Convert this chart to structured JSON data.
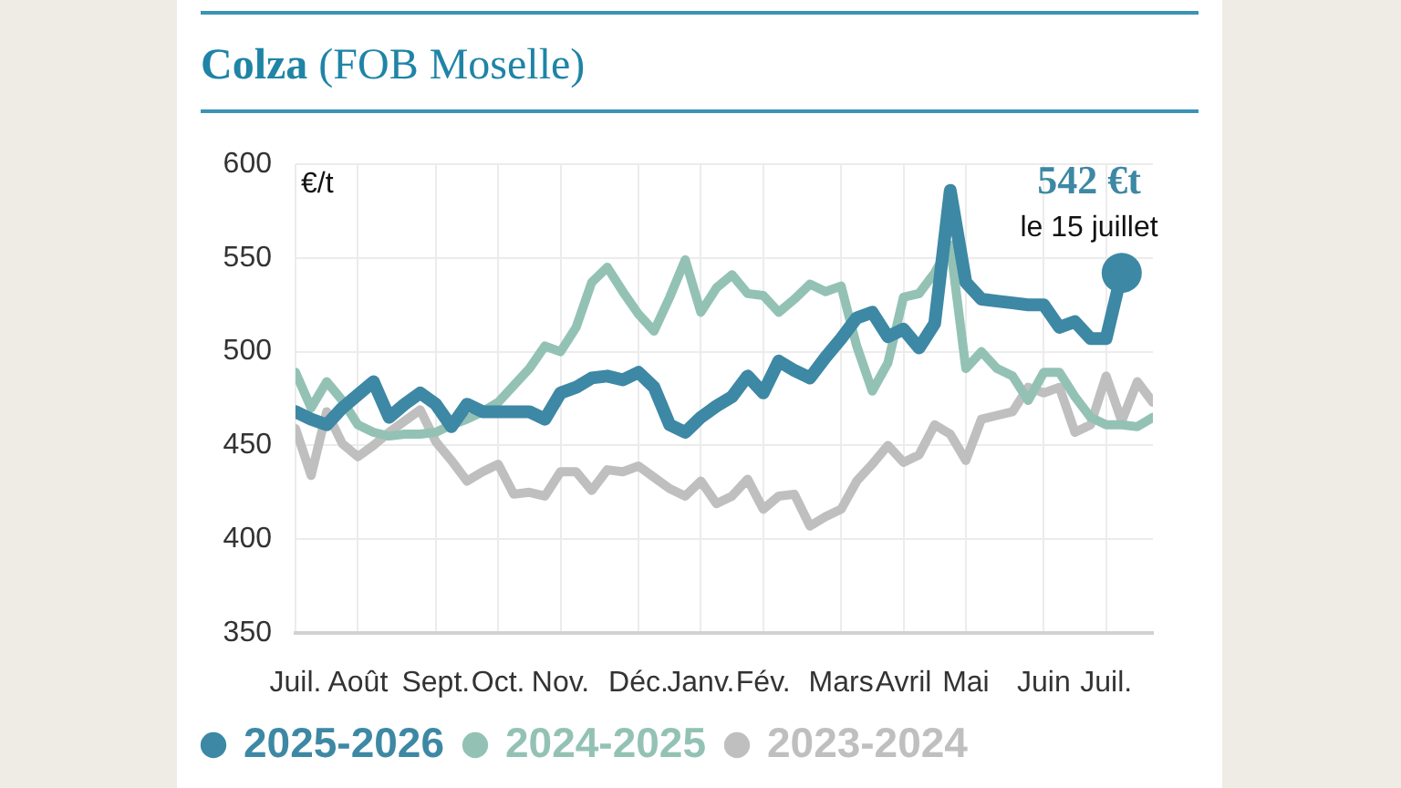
{
  "chart_data": {
    "type": "line",
    "title": "Colza (FOB Moselle)",
    "ylabel": "€/t",
    "categories": [
      "Juil.",
      null,
      null,
      null,
      "Août",
      null,
      null,
      null,
      null,
      "Sept.",
      null,
      null,
      null,
      "Oct.",
      null,
      null,
      null,
      "Nov.",
      null,
      null,
      null,
      null,
      "Déc.",
      null,
      null,
      null,
      "Janv.",
      null,
      null,
      null,
      "Fév.",
      null,
      null,
      null,
      null,
      "Mars",
      null,
      null,
      null,
      "Avril",
      null,
      null,
      null,
      "Mai",
      null,
      null,
      null,
      null,
      "Juin",
      null,
      null,
      null,
      "Juil.",
      null,
      null,
      null
    ],
    "ylim": [
      350,
      600
    ],
    "yticks": [
      350,
      400,
      450,
      500,
      550,
      600
    ],
    "grid": true,
    "legend": "bottom left",
    "annotations": [
      "542 €t",
      "le 15 juillet"
    ],
    "series": [
      {
        "name": "2025-2026",
        "color": "#3d88a4",
        "values": [
          468,
          464,
          461,
          470,
          477,
          484,
          465,
          472,
          478,
          472,
          460,
          472,
          468,
          468,
          468,
          468,
          464,
          478,
          481,
          486,
          487,
          485,
          489,
          481,
          461,
          457,
          465,
          471,
          476,
          487,
          478,
          495,
          490,
          486,
          497,
          507,
          518,
          521,
          508,
          512,
          502,
          515,
          586,
          537,
          528,
          527,
          526,
          525,
          525,
          513,
          516,
          507,
          507,
          542,
          null,
          null
        ]
      },
      {
        "name": "2024-2025",
        "color": "#93c2b5",
        "values": [
          489,
          470,
          484,
          474,
          461,
          457,
          455,
          456,
          456,
          457,
          461,
          464,
          468,
          473,
          482,
          491,
          503,
          500,
          513,
          537,
          545,
          532,
          520,
          511,
          529,
          549,
          521,
          534,
          541,
          531,
          530,
          521,
          528,
          536,
          532,
          535,
          503,
          479,
          494,
          529,
          531,
          542,
          557,
          491,
          500,
          491,
          487,
          474,
          489,
          489,
          476,
          465,
          461,
          461,
          460,
          465
        ]
      },
      {
        "name": "2023-2024",
        "color": "#bfbfbf",
        "values": [
          459,
          434,
          468,
          451,
          444,
          450,
          457,
          463,
          469,
          452,
          442,
          431,
          436,
          440,
          424,
          425,
          423,
          436,
          436,
          426,
          437,
          436,
          439,
          433,
          427,
          423,
          431,
          419,
          423,
          432,
          416,
          423,
          424,
          407,
          412,
          416,
          431,
          440,
          450,
          441,
          445,
          461,
          456,
          442,
          464,
          466,
          468,
          481,
          478,
          481,
          457,
          461,
          487,
          463,
          484,
          473
        ]
      },
      {
        "type": "scatter",
        "marker": "circle",
        "color": "#3d88a4",
        "values": [
          null,
          null,
          null,
          null,
          null,
          null,
          null,
          null,
          null,
          null,
          null,
          null,
          null,
          null,
          null,
          null,
          null,
          null,
          null,
          null,
          null,
          null,
          null,
          null,
          null,
          null,
          null,
          null,
          null,
          null,
          null,
          null,
          null,
          null,
          null,
          null,
          null,
          null,
          null,
          null,
          null,
          null,
          null,
          null,
          null,
          null,
          null,
          null,
          null,
          null,
          null,
          null,
          null,
          542,
          null,
          null
        ]
      }
    ]
  }
}
